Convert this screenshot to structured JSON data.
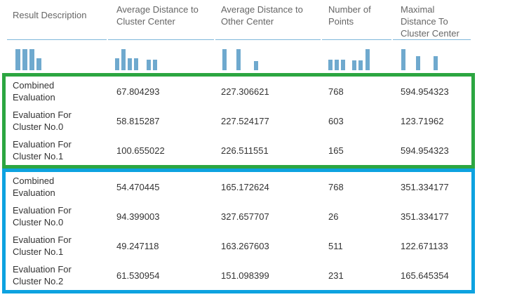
{
  "table": {
    "columns": [
      {
        "label": "Result Description",
        "lines": [
          "Result Description"
        ]
      },
      {
        "label": "Average Distance to Cluster Center",
        "lines": [
          "Average Distance to",
          "Cluster Center"
        ]
      },
      {
        "label": "Average Distance to Other Center",
        "lines": [
          "Average Distance to",
          "Other Center"
        ]
      },
      {
        "label": "Number of Points",
        "lines": [
          "Number of",
          "Points"
        ]
      },
      {
        "label": "Maximal Distance To Cluster Center",
        "lines": [
          "Maximal Distance To",
          "Cluster Center"
        ]
      }
    ],
    "sparklines": [
      {
        "column": "Result Description",
        "items": [
          {
            "h": 1
          },
          {
            "h": 1
          },
          {
            "h": 1
          },
          {
            "h": 0.55
          }
        ]
      },
      {
        "column": "Average Distance to Cluster Center",
        "items": [
          {
            "h": 0.57
          },
          {
            "h": 1
          },
          {
            "h": 0.57
          },
          {
            "h": 0.57
          },
          {
            "s": 9
          },
          {
            "h": 0.5
          },
          {
            "h": 0.5
          }
        ]
      },
      {
        "column": "Average Distance to Other Center",
        "items": [
          {
            "h": 1
          },
          {
            "s": 11
          },
          {
            "h": 1
          },
          {
            "s": 16
          },
          {
            "h": 0.42
          }
        ]
      },
      {
        "column": "Number of Points",
        "items": [
          {
            "h": 0.5
          },
          {
            "h": 0.5
          },
          {
            "h": 0.5
          },
          {
            "s": 7
          },
          {
            "h": 0.47
          },
          {
            "h": 0.47
          },
          {
            "s": 1
          },
          {
            "h": 1
          }
        ]
      },
      {
        "column": "Maximal Distance To Cluster Center",
        "items": [
          {
            "h": 1
          },
          {
            "s": 12
          },
          {
            "h": 0.65
          },
          {
            "s": 16
          },
          {
            "h": 0.65
          }
        ]
      }
    ],
    "groups": [
      {
        "name": "green-highlight",
        "border_color": "#2ca641",
        "rows": [
          {
            "label": "Combined Evaluation",
            "lines": [
              "Combined",
              "Evaluation"
            ],
            "values": [
              "67.804293",
              "227.306621",
              "768",
              "594.954323"
            ]
          },
          {
            "label": "Evaluation For Cluster No.0",
            "lines": [
              "Evaluation For",
              "Cluster No.0"
            ],
            "values": [
              "58.815287",
              "227.524177",
              "603",
              "123.71962"
            ]
          },
          {
            "label": "Evaluation For Cluster No.1",
            "lines": [
              "Evaluation For",
              "Cluster No.1"
            ],
            "values": [
              "100.655022",
              "226.511551",
              "165",
              "594.954323"
            ]
          }
        ]
      },
      {
        "name": "blue-highlight",
        "border_color": "#0da2e0",
        "rows": [
          {
            "label": "Combined Evaluation",
            "lines": [
              "Combined",
              "Evaluation"
            ],
            "values": [
              "54.470445",
              "165.172624",
              "768",
              "351.334177"
            ]
          },
          {
            "label": "Evaluation For Cluster No.0",
            "lines": [
              "Evaluation For",
              "Cluster No.0"
            ],
            "values": [
              "94.399003",
              "327.657707",
              "26",
              "351.334177"
            ]
          },
          {
            "label": "Evaluation For Cluster No.1",
            "lines": [
              "Evaluation For",
              "Cluster No.1"
            ],
            "values": [
              "49.247118",
              "163.267603",
              "511",
              "122.671133"
            ]
          },
          {
            "label": "Evaluation For Cluster No.2",
            "lines": [
              "Evaluation For",
              "Cluster No.2"
            ],
            "values": [
              "61.530954",
              "151.098399",
              "231",
              "165.645354"
            ]
          }
        ]
      }
    ]
  },
  "colors": {
    "sparkline_bar": "#6fa9ce",
    "header_divider": "#7fb8da",
    "header_text": "#666666",
    "cell_text": "#333333",
    "green_box": "#2ca641",
    "blue_box": "#0da2e0"
  }
}
